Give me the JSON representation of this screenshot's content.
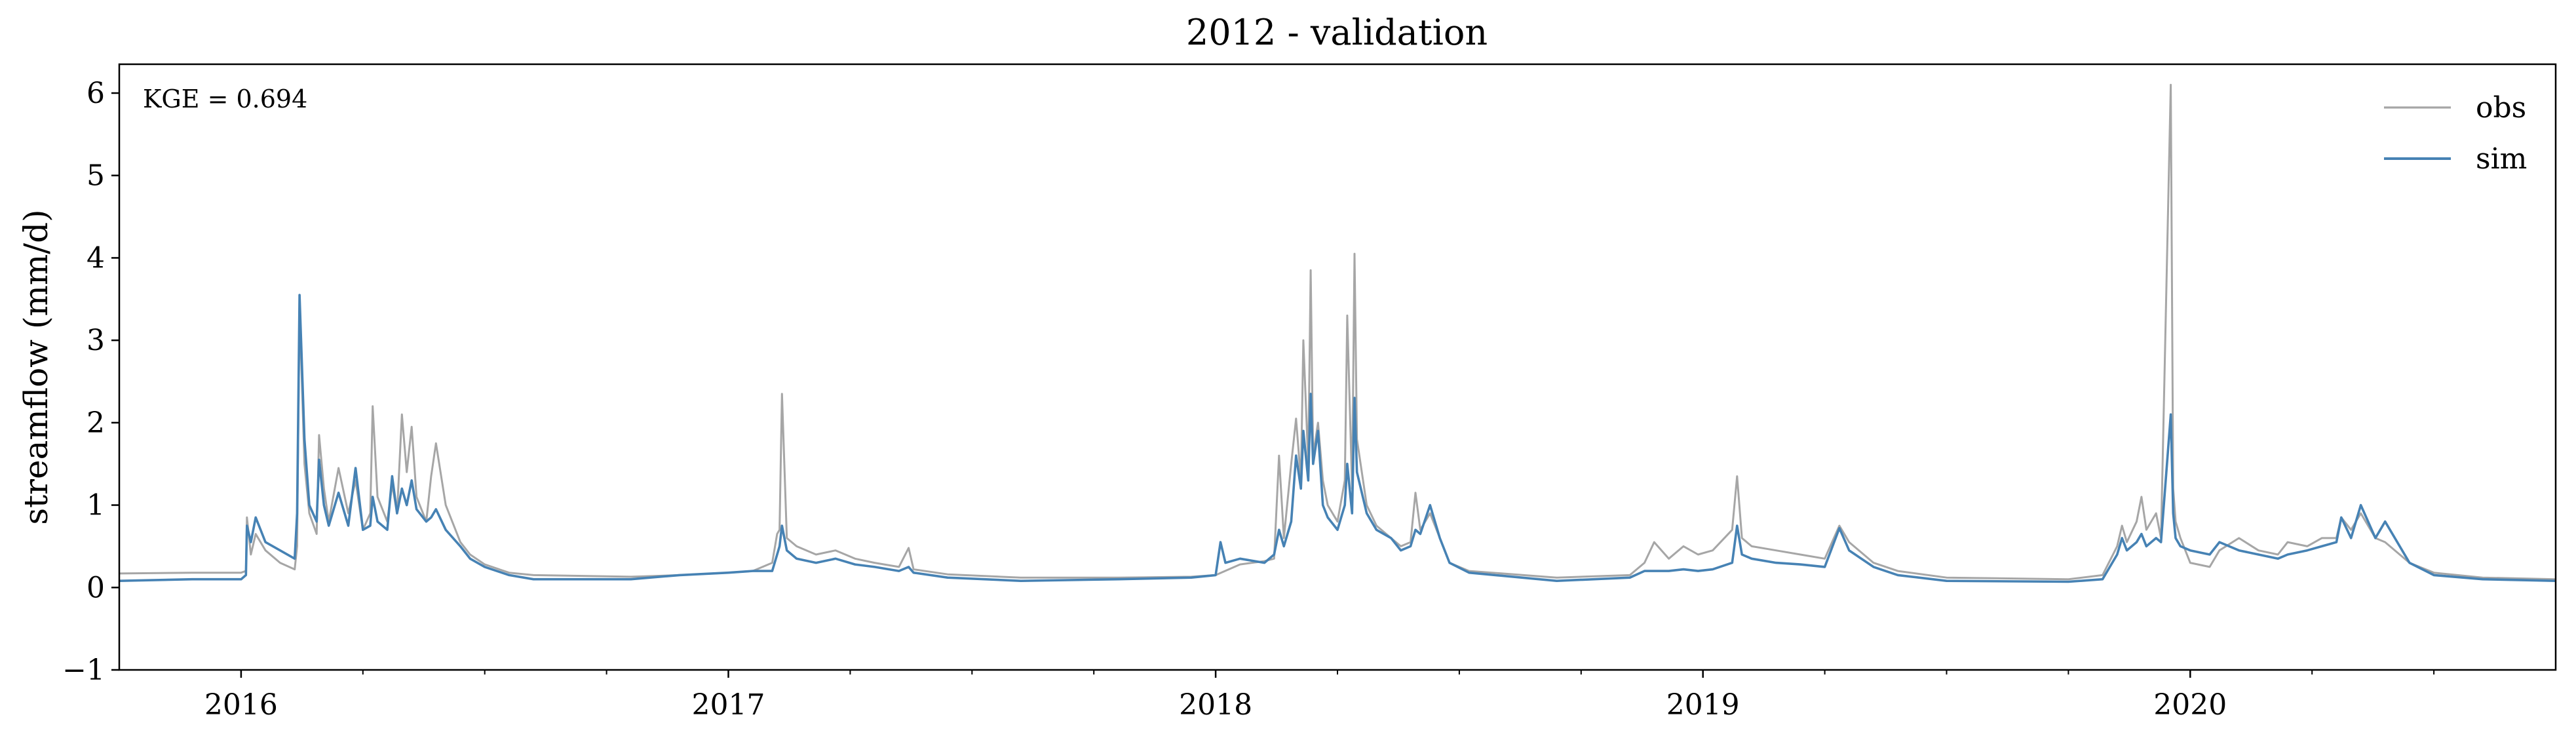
{
  "chart_data": {
    "type": "line",
    "title": "2012 - validation",
    "xlabel": "",
    "ylabel": "streamflow (mm/d)",
    "annotation": "KGE = 0.694",
    "ylim": [
      -1,
      6.35
    ],
    "xlim": [
      2015.75,
      2020.75
    ],
    "yticks": [
      -1,
      0,
      1,
      2,
      3,
      4,
      5,
      6
    ],
    "ytick_labels": [
      "−1",
      "0",
      "1",
      "2",
      "3",
      "4",
      "5",
      "6"
    ],
    "xticks": [
      2016,
      2017,
      2018,
      2019,
      2020
    ],
    "xtick_labels": [
      "2016",
      "2017",
      "2018",
      "2019",
      "2020"
    ],
    "minor_xticks": [
      2016.25,
      2016.5,
      2016.75,
      2017.25,
      2017.5,
      2017.75,
      2018.25,
      2018.5,
      2018.75,
      2019.25,
      2019.5,
      2019.75,
      2020.25,
      2020.5
    ],
    "grid": false,
    "legend_position": "top-right",
    "series": [
      {
        "name": "obs",
        "color": "#a6a6a6",
        "points": [
          [
            2015.75,
            0.17
          ],
          [
            2015.9,
            0.18
          ],
          [
            2016.0,
            0.18
          ],
          [
            2016.01,
            0.2
          ],
          [
            2016.012,
            0.85
          ],
          [
            2016.02,
            0.4
          ],
          [
            2016.03,
            0.65
          ],
          [
            2016.05,
            0.45
          ],
          [
            2016.08,
            0.3
          ],
          [
            2016.11,
            0.22
          ],
          [
            2016.115,
            0.5
          ],
          [
            2016.12,
            3.4
          ],
          [
            2016.13,
            1.5
          ],
          [
            2016.14,
            0.9
          ],
          [
            2016.155,
            0.65
          ],
          [
            2016.16,
            1.85
          ],
          [
            2016.17,
            1.2
          ],
          [
            2016.18,
            0.8
          ],
          [
            2016.2,
            1.45
          ],
          [
            2016.22,
            0.9
          ],
          [
            2016.235,
            1.3
          ],
          [
            2016.25,
            0.7
          ],
          [
            2016.265,
            0.9
          ],
          [
            2016.27,
            2.2
          ],
          [
            2016.28,
            1.1
          ],
          [
            2016.3,
            0.8
          ],
          [
            2016.31,
            1.25
          ],
          [
            2016.32,
            0.9
          ],
          [
            2016.33,
            2.1
          ],
          [
            2016.34,
            1.4
          ],
          [
            2016.35,
            1.95
          ],
          [
            2016.36,
            1.1
          ],
          [
            2016.38,
            0.8
          ],
          [
            2016.39,
            1.35
          ],
          [
            2016.4,
            1.75
          ],
          [
            2016.42,
            1.0
          ],
          [
            2016.45,
            0.55
          ],
          [
            2016.47,
            0.4
          ],
          [
            2016.5,
            0.28
          ],
          [
            2016.55,
            0.18
          ],
          [
            2016.6,
            0.15
          ],
          [
            2016.8,
            0.13
          ],
          [
            2016.9,
            0.15
          ],
          [
            2017.0,
            0.18
          ],
          [
            2017.05,
            0.2
          ],
          [
            2017.09,
            0.3
          ],
          [
            2017.1,
            0.65
          ],
          [
            2017.105,
            0.7
          ],
          [
            2017.11,
            2.35
          ],
          [
            2017.12,
            0.6
          ],
          [
            2017.14,
            0.5
          ],
          [
            2017.18,
            0.4
          ],
          [
            2017.22,
            0.45
          ],
          [
            2017.26,
            0.35
          ],
          [
            2017.3,
            0.3
          ],
          [
            2017.35,
            0.25
          ],
          [
            2017.37,
            0.48
          ],
          [
            2017.38,
            0.22
          ],
          [
            2017.45,
            0.16
          ],
          [
            2017.6,
            0.12
          ],
          [
            2017.8,
            0.12
          ],
          [
            2017.95,
            0.13
          ],
          [
            2018.0,
            0.15
          ],
          [
            2018.05,
            0.28
          ],
          [
            2018.1,
            0.32
          ],
          [
            2018.12,
            0.35
          ],
          [
            2018.13,
            1.6
          ],
          [
            2018.14,
            0.6
          ],
          [
            2018.155,
            1.5
          ],
          [
            2018.165,
            2.05
          ],
          [
            2018.175,
            1.3
          ],
          [
            2018.18,
            3.0
          ],
          [
            2018.19,
            1.5
          ],
          [
            2018.195,
            3.85
          ],
          [
            2018.2,
            1.6
          ],
          [
            2018.21,
            2.0
          ],
          [
            2018.22,
            1.3
          ],
          [
            2018.23,
            1.0
          ],
          [
            2018.25,
            0.8
          ],
          [
            2018.265,
            1.3
          ],
          [
            2018.27,
            3.3
          ],
          [
            2018.28,
            1.2
          ],
          [
            2018.285,
            4.05
          ],
          [
            2018.29,
            1.8
          ],
          [
            2018.31,
            1.0
          ],
          [
            2018.33,
            0.75
          ],
          [
            2018.36,
            0.6
          ],
          [
            2018.38,
            0.5
          ],
          [
            2018.4,
            0.55
          ],
          [
            2018.41,
            1.15
          ],
          [
            2018.42,
            0.7
          ],
          [
            2018.44,
            0.9
          ],
          [
            2018.46,
            0.6
          ],
          [
            2018.48,
            0.3
          ],
          [
            2018.52,
            0.2
          ],
          [
            2018.7,
            0.12
          ],
          [
            2018.85,
            0.15
          ],
          [
            2018.88,
            0.3
          ],
          [
            2018.9,
            0.55
          ],
          [
            2018.93,
            0.35
          ],
          [
            2018.96,
            0.5
          ],
          [
            2018.99,
            0.4
          ],
          [
            2019.02,
            0.45
          ],
          [
            2019.06,
            0.7
          ],
          [
            2019.07,
            1.35
          ],
          [
            2019.08,
            0.6
          ],
          [
            2019.1,
            0.5
          ],
          [
            2019.15,
            0.45
          ],
          [
            2019.2,
            0.4
          ],
          [
            2019.25,
            0.35
          ],
          [
            2019.28,
            0.75
          ],
          [
            2019.3,
            0.55
          ],
          [
            2019.35,
            0.3
          ],
          [
            2019.4,
            0.2
          ],
          [
            2019.5,
            0.12
          ],
          [
            2019.75,
            0.1
          ],
          [
            2019.82,
            0.15
          ],
          [
            2019.85,
            0.5
          ],
          [
            2019.86,
            0.75
          ],
          [
            2019.87,
            0.55
          ],
          [
            2019.89,
            0.8
          ],
          [
            2019.9,
            1.1
          ],
          [
            2019.91,
            0.7
          ],
          [
            2019.93,
            0.9
          ],
          [
            2019.94,
            0.6
          ],
          [
            2019.96,
            6.1
          ],
          [
            2019.965,
            1.2
          ],
          [
            2019.97,
            0.8
          ],
          [
            2019.98,
            0.6
          ],
          [
            2020.0,
            0.3
          ],
          [
            2020.04,
            0.25
          ],
          [
            2020.06,
            0.45
          ],
          [
            2020.1,
            0.6
          ],
          [
            2020.14,
            0.45
          ],
          [
            2020.18,
            0.4
          ],
          [
            2020.2,
            0.55
          ],
          [
            2020.24,
            0.5
          ],
          [
            2020.27,
            0.6
          ],
          [
            2020.3,
            0.6
          ],
          [
            2020.31,
            0.85
          ],
          [
            2020.33,
            0.7
          ],
          [
            2020.35,
            0.9
          ],
          [
            2020.38,
            0.6
          ],
          [
            2020.4,
            0.55
          ],
          [
            2020.45,
            0.3
          ],
          [
            2020.5,
            0.18
          ],
          [
            2020.6,
            0.12
          ],
          [
            2020.75,
            0.1
          ]
        ]
      },
      {
        "name": "sim",
        "color": "#4682b4",
        "points": [
          [
            2015.75,
            0.08
          ],
          [
            2015.9,
            0.1
          ],
          [
            2016.0,
            0.1
          ],
          [
            2016.01,
            0.15
          ],
          [
            2016.012,
            0.75
          ],
          [
            2016.02,
            0.55
          ],
          [
            2016.03,
            0.85
          ],
          [
            2016.05,
            0.55
          ],
          [
            2016.08,
            0.45
          ],
          [
            2016.11,
            0.35
          ],
          [
            2016.115,
            0.9
          ],
          [
            2016.12,
            3.55
          ],
          [
            2016.13,
            1.8
          ],
          [
            2016.14,
            1.0
          ],
          [
            2016.155,
            0.8
          ],
          [
            2016.16,
            1.55
          ],
          [
            2016.17,
            1.0
          ],
          [
            2016.18,
            0.75
          ],
          [
            2016.2,
            1.15
          ],
          [
            2016.22,
            0.75
          ],
          [
            2016.235,
            1.45
          ],
          [
            2016.25,
            0.7
          ],
          [
            2016.265,
            0.75
          ],
          [
            2016.27,
            1.1
          ],
          [
            2016.28,
            0.8
          ],
          [
            2016.3,
            0.7
          ],
          [
            2016.31,
            1.35
          ],
          [
            2016.32,
            0.9
          ],
          [
            2016.33,
            1.2
          ],
          [
            2016.34,
            1.0
          ],
          [
            2016.35,
            1.3
          ],
          [
            2016.36,
            0.95
          ],
          [
            2016.38,
            0.8
          ],
          [
            2016.39,
            0.85
          ],
          [
            2016.4,
            0.95
          ],
          [
            2016.42,
            0.7
          ],
          [
            2016.45,
            0.5
          ],
          [
            2016.47,
            0.35
          ],
          [
            2016.5,
            0.25
          ],
          [
            2016.55,
            0.15
          ],
          [
            2016.6,
            0.1
          ],
          [
            2016.8,
            0.1
          ],
          [
            2016.9,
            0.15
          ],
          [
            2017.0,
            0.18
          ],
          [
            2017.05,
            0.2
          ],
          [
            2017.09,
            0.2
          ],
          [
            2017.1,
            0.4
          ],
          [
            2017.105,
            0.5
          ],
          [
            2017.11,
            0.75
          ],
          [
            2017.12,
            0.45
          ],
          [
            2017.14,
            0.35
          ],
          [
            2017.18,
            0.3
          ],
          [
            2017.22,
            0.35
          ],
          [
            2017.26,
            0.28
          ],
          [
            2017.3,
            0.25
          ],
          [
            2017.35,
            0.2
          ],
          [
            2017.37,
            0.25
          ],
          [
            2017.38,
            0.18
          ],
          [
            2017.45,
            0.12
          ],
          [
            2017.6,
            0.08
          ],
          [
            2017.8,
            0.1
          ],
          [
            2017.95,
            0.12
          ],
          [
            2018.0,
            0.15
          ],
          [
            2018.01,
            0.55
          ],
          [
            2018.02,
            0.3
          ],
          [
            2018.05,
            0.35
          ],
          [
            2018.1,
            0.3
          ],
          [
            2018.12,
            0.4
          ],
          [
            2018.13,
            0.7
          ],
          [
            2018.14,
            0.5
          ],
          [
            2018.155,
            0.8
          ],
          [
            2018.165,
            1.6
          ],
          [
            2018.175,
            1.2
          ],
          [
            2018.18,
            1.9
          ],
          [
            2018.19,
            1.3
          ],
          [
            2018.195,
            2.35
          ],
          [
            2018.2,
            1.5
          ],
          [
            2018.21,
            1.9
          ],
          [
            2018.22,
            1.0
          ],
          [
            2018.23,
            0.85
          ],
          [
            2018.25,
            0.7
          ],
          [
            2018.265,
            1.0
          ],
          [
            2018.27,
            1.5
          ],
          [
            2018.28,
            0.9
          ],
          [
            2018.285,
            2.3
          ],
          [
            2018.29,
            1.4
          ],
          [
            2018.31,
            0.9
          ],
          [
            2018.33,
            0.7
          ],
          [
            2018.36,
            0.6
          ],
          [
            2018.38,
            0.45
          ],
          [
            2018.4,
            0.5
          ],
          [
            2018.41,
            0.7
          ],
          [
            2018.42,
            0.65
          ],
          [
            2018.44,
            1.0
          ],
          [
            2018.46,
            0.6
          ],
          [
            2018.48,
            0.3
          ],
          [
            2018.52,
            0.18
          ],
          [
            2018.7,
            0.08
          ],
          [
            2018.85,
            0.12
          ],
          [
            2018.88,
            0.2
          ],
          [
            2018.9,
            0.2
          ],
          [
            2018.93,
            0.2
          ],
          [
            2018.96,
            0.22
          ],
          [
            2018.99,
            0.2
          ],
          [
            2019.02,
            0.22
          ],
          [
            2019.06,
            0.3
          ],
          [
            2019.07,
            0.75
          ],
          [
            2019.08,
            0.4
          ],
          [
            2019.1,
            0.35
          ],
          [
            2019.15,
            0.3
          ],
          [
            2019.2,
            0.28
          ],
          [
            2019.25,
            0.25
          ],
          [
            2019.28,
            0.72
          ],
          [
            2019.3,
            0.45
          ],
          [
            2019.35,
            0.25
          ],
          [
            2019.4,
            0.15
          ],
          [
            2019.5,
            0.08
          ],
          [
            2019.75,
            0.07
          ],
          [
            2019.82,
            0.1
          ],
          [
            2019.85,
            0.4
          ],
          [
            2019.86,
            0.6
          ],
          [
            2019.87,
            0.45
          ],
          [
            2019.89,
            0.55
          ],
          [
            2019.9,
            0.65
          ],
          [
            2019.91,
            0.5
          ],
          [
            2019.93,
            0.6
          ],
          [
            2019.94,
            0.55
          ],
          [
            2019.96,
            2.1
          ],
          [
            2019.965,
            0.9
          ],
          [
            2019.97,
            0.6
          ],
          [
            2019.98,
            0.5
          ],
          [
            2020.0,
            0.45
          ],
          [
            2020.04,
            0.4
          ],
          [
            2020.06,
            0.55
          ],
          [
            2020.1,
            0.45
          ],
          [
            2020.14,
            0.4
          ],
          [
            2020.18,
            0.35
          ],
          [
            2020.2,
            0.4
          ],
          [
            2020.24,
            0.45
          ],
          [
            2020.27,
            0.5
          ],
          [
            2020.3,
            0.55
          ],
          [
            2020.31,
            0.85
          ],
          [
            2020.33,
            0.6
          ],
          [
            2020.35,
            1.0
          ],
          [
            2020.38,
            0.6
          ],
          [
            2020.4,
            0.8
          ],
          [
            2020.45,
            0.3
          ],
          [
            2020.5,
            0.15
          ],
          [
            2020.6,
            0.1
          ],
          [
            2020.75,
            0.08
          ]
        ]
      }
    ]
  }
}
